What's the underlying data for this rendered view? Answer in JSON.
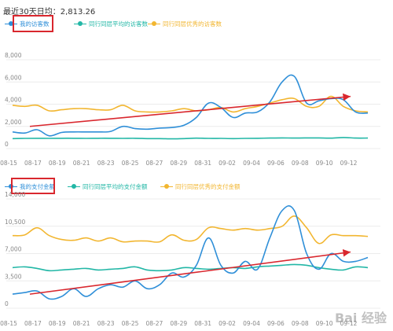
{
  "summary_text": "最近30天日均：2,813.26",
  "colors": {
    "blue": "#2f8fd8",
    "teal": "#22b7a6",
    "orange": "#f2b630",
    "red": "#d9272e",
    "grid": "#ececec",
    "tick": "#888888"
  },
  "chart_data": [
    {
      "type": "line",
      "x": [
        "08-15",
        "08-16",
        "08-17",
        "08-18",
        "08-19",
        "08-20",
        "08-21",
        "08-22",
        "08-23",
        "08-24",
        "08-25",
        "08-26",
        "08-27",
        "08-28",
        "08-29",
        "08-30",
        "08-31",
        "09-01",
        "09-02",
        "09-03",
        "09-04",
        "09-05",
        "09-06",
        "09-07",
        "09-08",
        "09-09",
        "09-10",
        "09-11",
        "09-12",
        "09-13"
      ],
      "xticks": [
        "08-15",
        "08-17",
        "08-19",
        "08-21",
        "08-23",
        "08-25",
        "08-27",
        "08-29",
        "08-31",
        "09-02",
        "09-04",
        "09-06",
        "09-08",
        "09-10",
        "09-12"
      ],
      "yticks": [
        "0",
        "2,000",
        "4,000",
        "6,000",
        "8,000"
      ],
      "ylim": [
        0,
        8000
      ],
      "series": [
        {
          "name": "我的访客数",
          "color": "blue",
          "values": [
            1500,
            1400,
            1700,
            1150,
            1450,
            1500,
            1500,
            1500,
            1550,
            2000,
            1800,
            1750,
            1850,
            1900,
            2100,
            2800,
            4100,
            3700,
            2800,
            3200,
            3300,
            4200,
            6000,
            6500,
            4100,
            4300,
            4500,
            4400,
            3300,
            3200
          ]
        },
        {
          "name": "同行同层平均的访客数",
          "color": "teal",
          "values": [
            900,
            920,
            930,
            920,
            930,
            930,
            920,
            930,
            930,
            920,
            930,
            900,
            900,
            880,
            900,
            940,
            920,
            920,
            900,
            920,
            930,
            950,
            960,
            950,
            960,
            960,
            940,
            1000,
            950,
            950
          ]
        },
        {
          "name": "同行同层优秀的访客数",
          "color": "orange",
          "values": [
            3900,
            3800,
            3900,
            3400,
            3500,
            3600,
            3600,
            3500,
            3500,
            3900,
            3400,
            3300,
            3300,
            3400,
            3600,
            3400,
            3500,
            3700,
            3300,
            3600,
            3800,
            4100,
            4400,
            4500,
            3800,
            3800,
            4700,
            3800,
            3400,
            3300
          ]
        }
      ],
      "trend": {
        "from": 2000,
        "to": 4700
      }
    },
    {
      "type": "line",
      "x": [
        "08-15",
        "08-16",
        "08-17",
        "08-18",
        "08-19",
        "08-20",
        "08-21",
        "08-22",
        "08-23",
        "08-24",
        "08-25",
        "08-26",
        "08-27",
        "08-28",
        "08-29",
        "08-30",
        "08-31",
        "09-01",
        "09-02",
        "09-03",
        "09-04",
        "09-05",
        "09-06",
        "09-07",
        "09-08",
        "09-09",
        "09-10",
        "09-11",
        "09-12",
        "09-13"
      ],
      "xticks": [
        "08-15",
        "08-17",
        "08-19",
        "08-21",
        "08-23",
        "08-25",
        "08-27",
        "08-29",
        "08-31",
        "09-02",
        "09-04",
        "09-06",
        "09-08",
        "09-10",
        "09-12"
      ],
      "yticks": [
        "0",
        "3,500",
        "7,000",
        "10,500",
        "14,000"
      ],
      "ylim": [
        0,
        14000
      ],
      "series": [
        {
          "name": "我的支付金额",
          "color": "blue",
          "values": [
            1800,
            2000,
            2200,
            1200,
            1500,
            2500,
            1500,
            2500,
            3000,
            2700,
            3500,
            2500,
            3000,
            4500,
            4000,
            5500,
            9000,
            5500,
            4500,
            6000,
            5000,
            9000,
            12500,
            12500,
            7000,
            5000,
            7000,
            6000,
            6000,
            6500
          ]
        },
        {
          "name": "同行同层平均的支付金额",
          "color": "teal",
          "values": [
            5200,
            5300,
            5100,
            4800,
            4900,
            5000,
            5100,
            4900,
            5000,
            5100,
            5300,
            4900,
            4800,
            4900,
            5200,
            5100,
            5000,
            5100,
            5200,
            5100,
            5300,
            5400,
            5500,
            5600,
            5500,
            5200,
            5000,
            4900,
            5300,
            5200
          ]
        },
        {
          "name": "同行同层优秀的支付金额",
          "color": "orange",
          "values": [
            9300,
            9400,
            10300,
            9300,
            8800,
            8700,
            9000,
            8600,
            9000,
            8500,
            8600,
            8600,
            8500,
            9400,
            8700,
            8800,
            10300,
            10200,
            10000,
            10200,
            10000,
            10200,
            10500,
            11800,
            10300,
            8300,
            9400,
            9300,
            9300,
            9200
          ]
        }
      ],
      "trend": {
        "from": 1800,
        "to": 7200
      }
    }
  ],
  "watermark": "Bai 经验"
}
